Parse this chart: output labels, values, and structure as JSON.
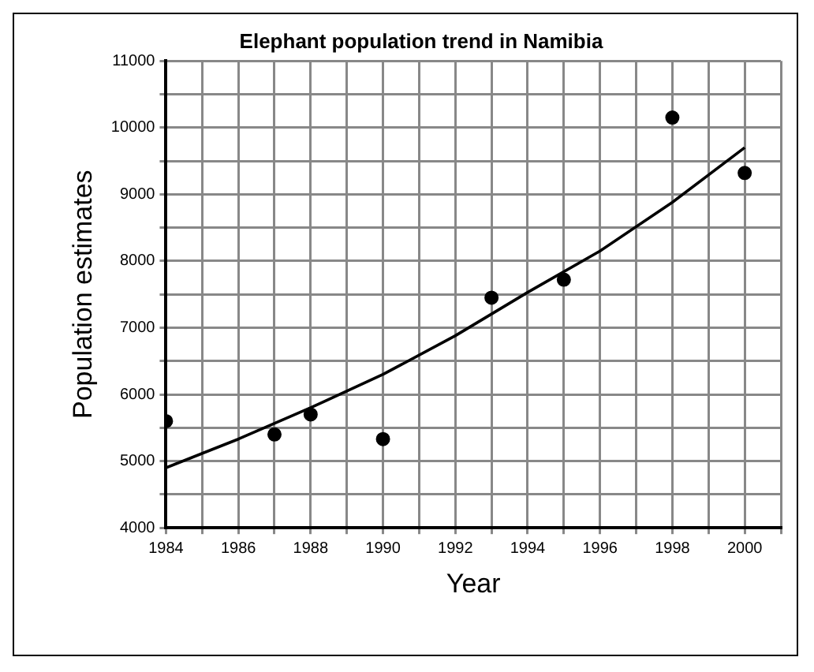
{
  "chart_data": {
    "type": "scatter",
    "title": "Elephant population trend in Namibia",
    "xlabel": "Year",
    "ylabel": "Population estimates",
    "xlim": [
      1984,
      2001
    ],
    "xticks": [
      1984,
      {
        "value": 1985,
        "label": null
      },
      1986,
      {
        "value": 1987,
        "label": null
      },
      1988,
      {
        "value": 1989,
        "label": null
      },
      1990,
      {
        "value": 1991,
        "label": null
      },
      1992,
      {
        "value": 1993,
        "label": null
      },
      1994,
      {
        "value": 1995,
        "label": null
      },
      1996,
      {
        "value": 1997,
        "label": null
      },
      1998,
      {
        "value": 1999,
        "label": null
      },
      2000,
      {
        "value": 2001,
        "label": null
      }
    ],
    "ylim": [
      4000,
      11000
    ],
    "yticks": [
      4000,
      {
        "value": 4500,
        "label": null
      },
      5000,
      {
        "value": 5500,
        "label": null
      },
      6000,
      {
        "value": 6500,
        "label": null
      },
      7000,
      {
        "value": 7500,
        "label": null
      },
      8000,
      {
        "value": 8500,
        "label": null
      },
      9000,
      {
        "value": 9500,
        "label": null
      },
      10000,
      {
        "value": 10500,
        "label": null
      },
      11000
    ],
    "grid": true,
    "legend": false,
    "series": [
      {
        "type": "scatter",
        "marker": "circle",
        "color": "#000000",
        "x": [
          1984,
          1987,
          1988,
          1990,
          1993,
          1995,
          1998,
          2000
        ],
        "values": [
          5600,
          5400,
          5700,
          5330,
          7450,
          7720,
          10150,
          9320
        ]
      },
      {
        "type": "line",
        "marker": "none",
        "color": "#000000",
        "x": [
          1984,
          1986,
          1988,
          1990,
          1992,
          1994,
          1996,
          1998,
          2000
        ],
        "values": [
          4900,
          5330,
          5800,
          6300,
          6880,
          7530,
          8150,
          8880,
          9700
        ]
      }
    ]
  }
}
